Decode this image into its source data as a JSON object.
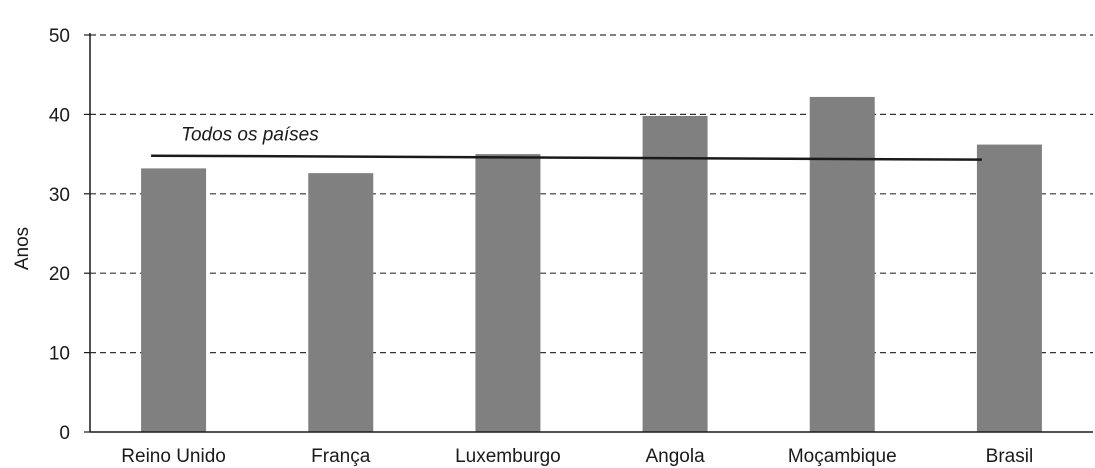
{
  "chart_data": {
    "type": "bar",
    "categories": [
      "Reino Unido",
      "França",
      "Luxemburgo",
      "Angola",
      "Moçambique",
      "Brasil"
    ],
    "values": [
      33.2,
      32.6,
      35.0,
      39.8,
      42.2,
      36.2
    ],
    "ylabel": "Anos",
    "ylim": [
      0,
      50
    ],
    "yticks": [
      0,
      10,
      20,
      30,
      40,
      50
    ],
    "grid": true,
    "colors": {
      "bar": "#808080",
      "reference_line": "#1a1a1a",
      "grid": "#333333"
    },
    "reference_line": {
      "label": "Todos os países",
      "y_start": 34.8,
      "y_end": 34.3
    }
  }
}
